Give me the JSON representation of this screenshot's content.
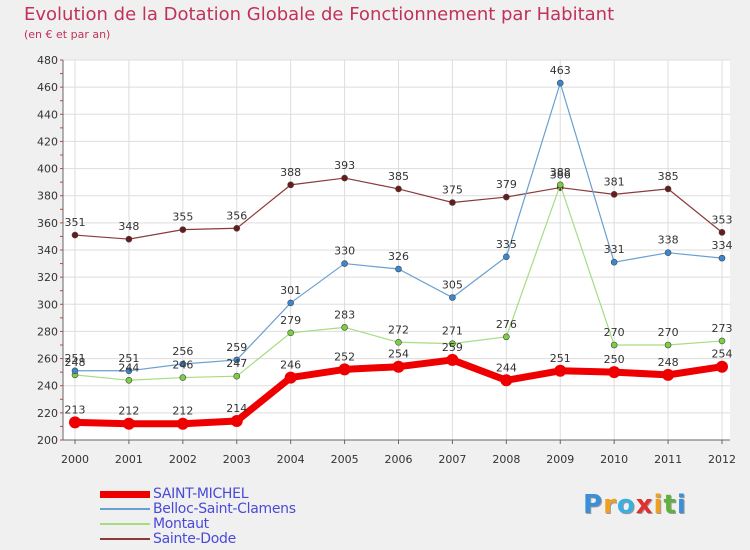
{
  "title": "Evolution de la Dotation Globale de Fonctionnement par Habitant",
  "subtitle": "(en € et par an)",
  "logo": {
    "text": "Proxiti",
    "letters": [
      "P",
      "r",
      "o",
      "x",
      "i",
      "t",
      "i"
    ],
    "colors": [
      "#3a8fd6",
      "#f0a020",
      "#3ab0e0",
      "#e03030",
      "#f0a020",
      "#60b040",
      "#3a8fd6"
    ]
  },
  "chart_data": {
    "type": "line",
    "title": "Evolution de la Dotation Globale de Fonctionnement par Habitant",
    "subtitle": "(en € et par an)",
    "xlabel": "",
    "ylabel": "",
    "ylim": [
      200,
      480
    ],
    "yticks": [
      200,
      220,
      240,
      260,
      280,
      300,
      320,
      340,
      360,
      380,
      400,
      420,
      440,
      460,
      480
    ],
    "grid": true,
    "legend_position": "bottom-left",
    "categories": [
      "2000",
      "2001",
      "2002",
      "2003",
      "2004",
      "2005",
      "2006",
      "2007",
      "2008",
      "2009",
      "2010",
      "2011",
      "2012"
    ],
    "series": [
      {
        "name": "SAINT-MICHEL",
        "color": "#ee0000",
        "highlight": true,
        "values": [
          213,
          212,
          212,
          214,
          246,
          252,
          254,
          259,
          244,
          251,
          250,
          248,
          254
        ]
      },
      {
        "name": "Belloc-Saint-Clamens",
        "color": "#6aa0d0",
        "marker": "#3a88d0",
        "values": [
          251,
          251,
          256,
          259,
          301,
          330,
          326,
          305,
          335,
          463,
          331,
          338,
          334
        ]
      },
      {
        "name": "Montaut",
        "color": "#a8dc80",
        "marker": "#7ad040",
        "values": [
          248,
          244,
          246,
          247,
          279,
          283,
          272,
          271,
          276,
          388,
          270,
          270,
          273
        ]
      },
      {
        "name": "Sainte-Dode",
        "color": "#8a3a3a",
        "marker": "#6a1a1a",
        "values": [
          351,
          348,
          355,
          356,
          388,
          393,
          385,
          375,
          379,
          386,
          381,
          385,
          353
        ]
      }
    ]
  }
}
